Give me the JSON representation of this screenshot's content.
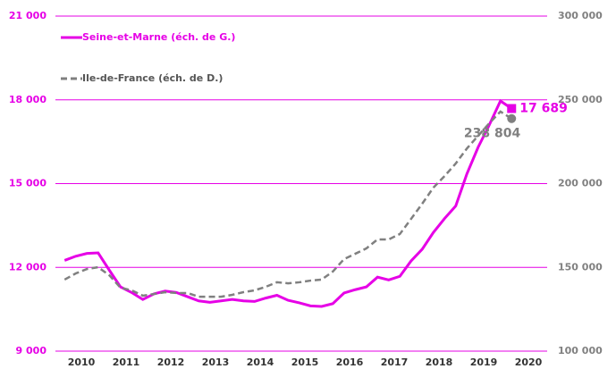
{
  "chart_data": {
    "type": "line",
    "x": [
      2010.125,
      2010.375,
      2010.625,
      2010.875,
      2011.125,
      2011.375,
      2011.625,
      2011.875,
      2012.125,
      2012.375,
      2012.625,
      2012.875,
      2013.125,
      2013.375,
      2013.625,
      2013.875,
      2014.125,
      2014.375,
      2014.625,
      2014.875,
      2015.125,
      2015.375,
      2015.625,
      2015.875,
      2016.125,
      2016.375,
      2016.625,
      2016.875,
      2017.125,
      2017.375,
      2017.625,
      2017.875,
      2018.125,
      2018.375,
      2018.625,
      2018.875,
      2019.125,
      2019.375,
      2019.625,
      2019.875,
      2020.125
    ],
    "series": [
      {
        "name": "Seine-et-Marne (éch. de G.)",
        "color": "#e600e6",
        "axis": "y",
        "marker": "square",
        "values": [
          12250,
          12400,
          12500,
          12520,
          11900,
          11300,
          11100,
          10850,
          11050,
          11150,
          11100,
          10950,
          10800,
          10750,
          10800,
          10850,
          10800,
          10780,
          10900,
          11000,
          10820,
          10730,
          10620,
          10600,
          10700,
          11080,
          11200,
          11300,
          11650,
          11550,
          11680,
          12230,
          12650,
          13250,
          13750,
          14200,
          15350,
          16300,
          17100,
          17960,
          17689
        ],
        "value_labels": [
          null,
          null,
          null,
          null,
          null,
          null,
          null,
          null,
          null,
          null,
          null,
          null,
          null,
          null,
          null,
          null,
          null,
          null,
          null,
          null,
          null,
          null,
          null,
          null,
          null,
          null,
          null,
          null,
          null,
          null,
          null,
          null,
          null,
          null,
          null,
          null,
          null,
          null,
          null,
          null,
          "17 689"
        ]
      },
      {
        "name": "Ile-de-France (éch. de D.)",
        "color": "#808080",
        "axis": "y2",
        "marker": "circle",
        "dash": true,
        "values": [
          142700,
          146400,
          149000,
          150100,
          145300,
          137900,
          136300,
          133100,
          134100,
          135200,
          134700,
          134700,
          132500,
          132500,
          132500,
          133600,
          135200,
          136300,
          138400,
          141100,
          140500,
          141100,
          142100,
          142700,
          147500,
          154900,
          158100,
          161300,
          166700,
          166700,
          169900,
          178900,
          188000,
          197600,
          204500,
          212000,
          221000,
          228500,
          236000,
          243000,
          238804
        ],
        "value_labels": [
          null,
          null,
          null,
          null,
          null,
          null,
          null,
          null,
          null,
          null,
          null,
          null,
          null,
          null,
          null,
          null,
          null,
          null,
          null,
          null,
          null,
          null,
          null,
          null,
          null,
          null,
          null,
          null,
          null,
          null,
          null,
          null,
          null,
          null,
          null,
          null,
          null,
          null,
          null,
          null,
          "238 804"
        ]
      }
    ],
    "xlim": [
      2010,
      2021
    ],
    "xticks": [
      {
        "value": 2010.5,
        "label": "2010"
      },
      {
        "value": 2011.5,
        "label": "2011"
      },
      {
        "value": 2012.5,
        "label": "2012"
      },
      {
        "value": 2013.5,
        "label": "2013"
      },
      {
        "value": 2014.5,
        "label": "2014"
      },
      {
        "value": 2015.5,
        "label": "2015"
      },
      {
        "value": 2016.5,
        "label": "2016"
      },
      {
        "value": 2017.5,
        "label": "2017"
      },
      {
        "value": 2018.5,
        "label": "2018"
      },
      {
        "value": 2019.5,
        "label": "2019"
      },
      {
        "value": 2020.5,
        "label": "2020"
      }
    ],
    "ylim": [
      9000,
      21000
    ],
    "yticks": [
      {
        "value": 9000,
        "label": "9 000"
      },
      {
        "value": 12000,
        "label": "12 000"
      },
      {
        "value": 15000,
        "label": "15 000"
      },
      {
        "value": 18000,
        "label": "18 000"
      },
      {
        "value": 21000,
        "label": "21 000"
      }
    ],
    "y2lim": [
      100000,
      300000
    ],
    "y2ticks": [
      {
        "value": 100000,
        "label": "100 000"
      },
      {
        "value": 150000,
        "label": "150 000"
      },
      {
        "value": 200000,
        "label": "200 000"
      },
      {
        "value": 250000,
        "label": "250 000"
      },
      {
        "value": 300000,
        "label": "300 000"
      }
    ],
    "grid": true,
    "grid_color": "#e600e6",
    "legend": "upper left"
  }
}
